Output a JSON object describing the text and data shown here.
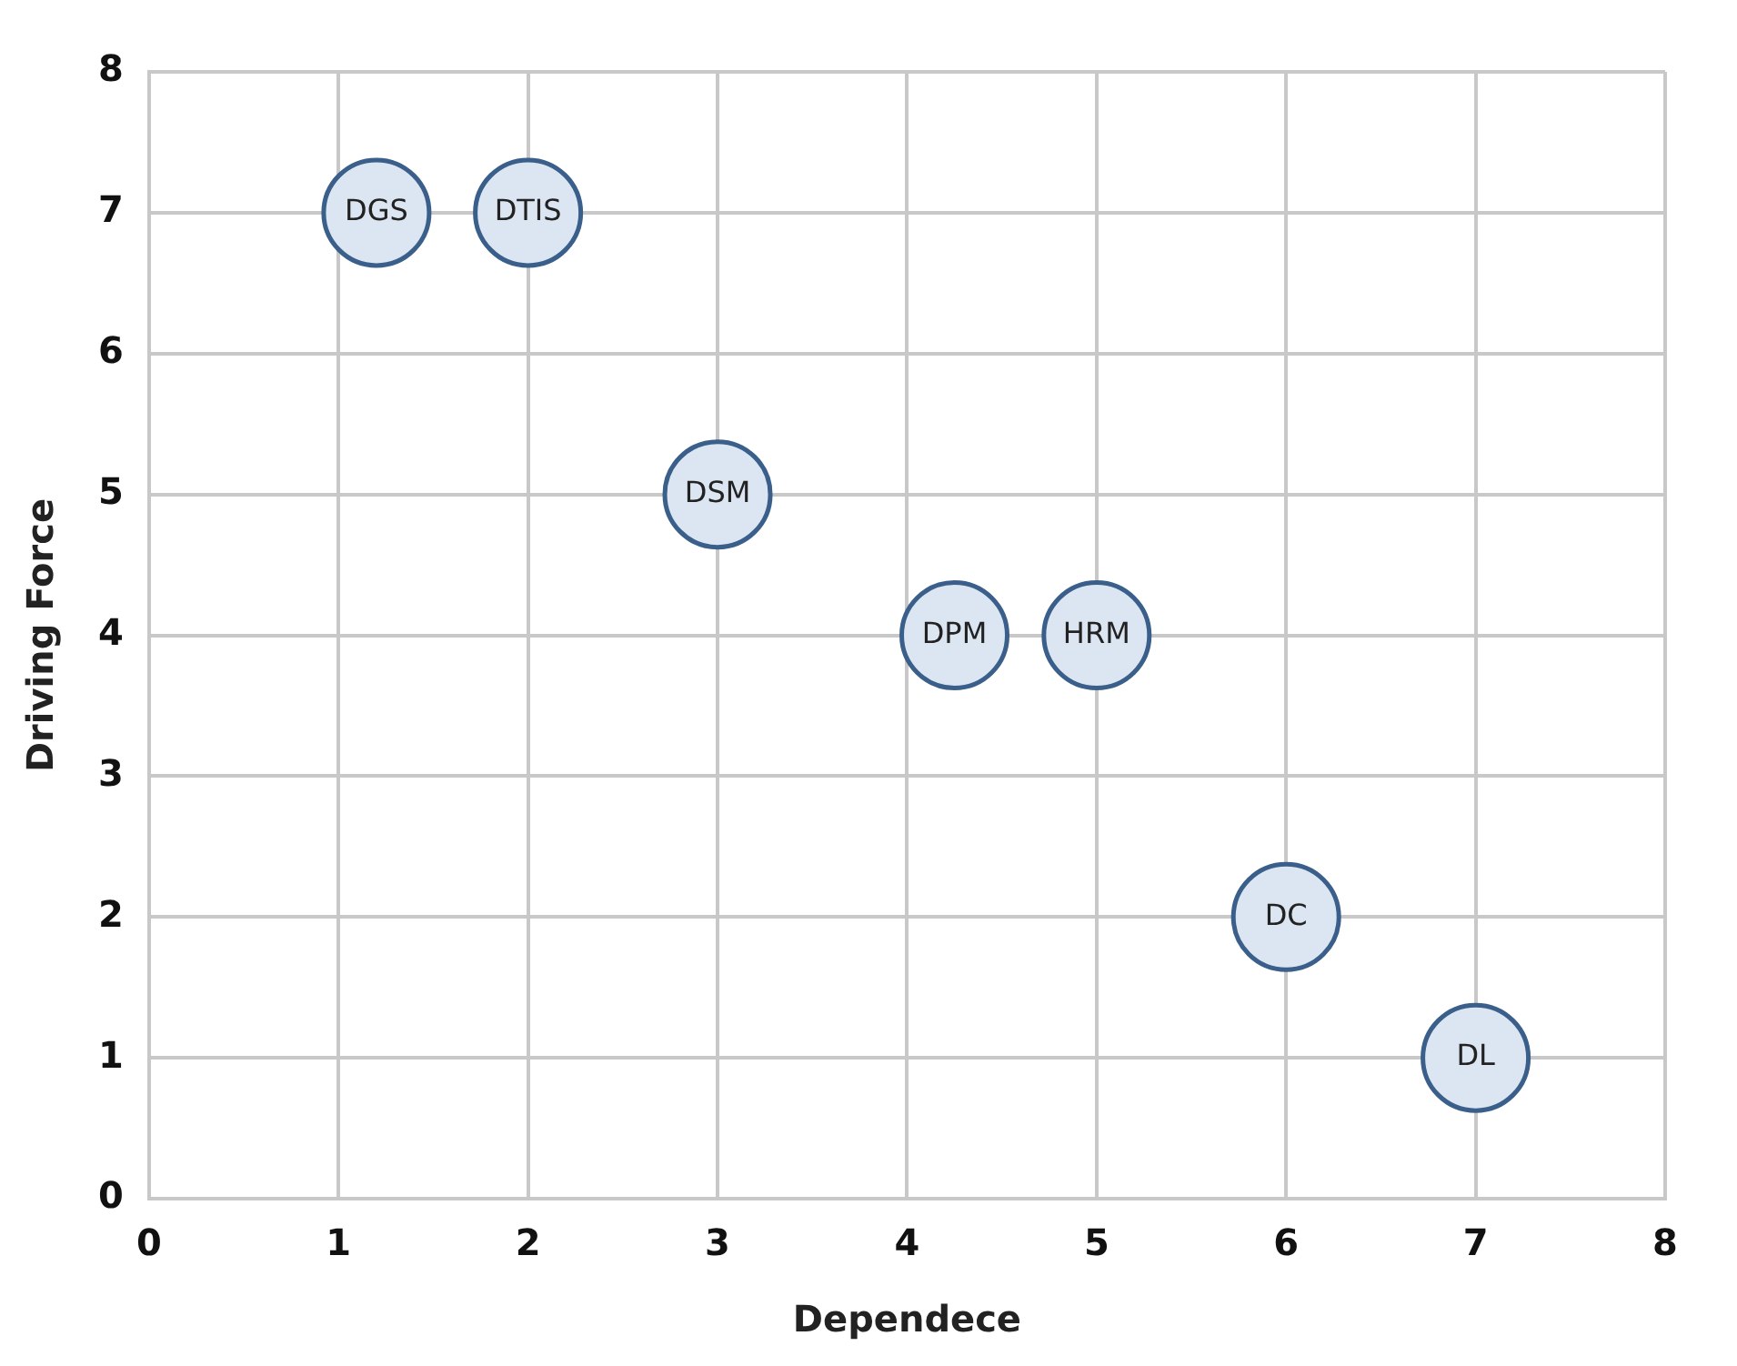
{
  "chart_data": {
    "type": "scatter",
    "xlabel": "Dependece",
    "ylabel": "Driving Force",
    "x": [
      1.2,
      2,
      3,
      4.25,
      5,
      6,
      7
    ],
    "series": [
      {
        "color": "#dce6f2",
        "values": [
          7,
          7,
          5,
          4,
          4,
          2,
          1
        ]
      }
    ],
    "annotations": [
      {
        "text": "DGS",
        "x": 1.2,
        "y": 7
      },
      {
        "text": "DTIS",
        "x": 2,
        "y": 7
      },
      {
        "text": "DSM",
        "x": 3,
        "y": 5
      },
      {
        "text": "DPM",
        "x": 4.25,
        "y": 4
      },
      {
        "text": "HRM",
        "x": 5,
        "y": 4
      },
      {
        "text": "DC",
        "x": 6,
        "y": 2
      },
      {
        "text": "DL",
        "x": 7,
        "y": 1
      }
    ],
    "xlim": [
      0,
      8
    ],
    "xticks": [
      0,
      1,
      2,
      3,
      4,
      5,
      6,
      7,
      8
    ],
    "ylim": [
      0,
      8
    ],
    "yticks": [
      0,
      1,
      2,
      3,
      4,
      5,
      6,
      7,
      8
    ],
    "grid": true,
    "marker": "circle",
    "legend": false
  }
}
